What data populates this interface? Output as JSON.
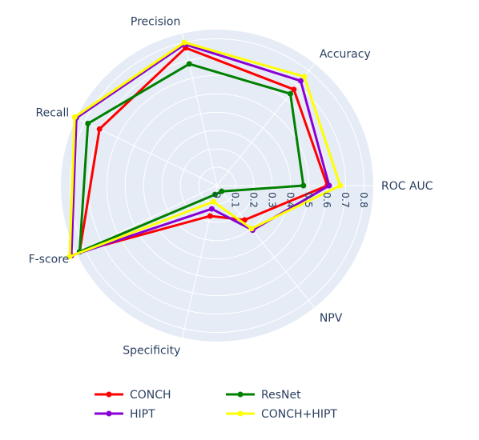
{
  "chart_data": {
    "type": "radar",
    "axes": [
      "ROC AUC",
      "Accuracy",
      "Precision",
      "Recall",
      "F-score",
      "Specificity",
      "NPV"
    ],
    "radial_range": [
      0,
      0.85
    ],
    "radial_ticks": [
      0,
      0.1,
      0.2,
      0.3,
      0.4,
      0.5,
      0.6,
      0.7,
      0.8
    ],
    "radial_tick_labels": [
      "0",
      "0.1",
      "0.2",
      "0.3",
      "0.4",
      "0.5",
      "0.6",
      "0.7",
      "0.8"
    ],
    "grid": true,
    "legend_position": "bottom",
    "series": [
      {
        "name": "CONCH",
        "color": "#ff0000",
        "values": [
          0.6,
          0.67,
          0.77,
          0.71,
          0.83,
          0.17,
          0.24
        ]
      },
      {
        "name": "ResNet",
        "color": "#008000",
        "values": [
          0.47,
          0.64,
          0.68,
          0.78,
          0.83,
          0.05,
          0.04
        ]
      },
      {
        "name": "HIPT",
        "color": "#8a00d4",
        "values": [
          0.61,
          0.73,
          0.79,
          0.85,
          0.88,
          0.13,
          0.31
        ]
      },
      {
        "name": "CONCH+HIPT",
        "color": "#ffff00",
        "values": [
          0.67,
          0.76,
          0.8,
          0.86,
          0.89,
          0.09,
          0.3
        ]
      }
    ]
  }
}
